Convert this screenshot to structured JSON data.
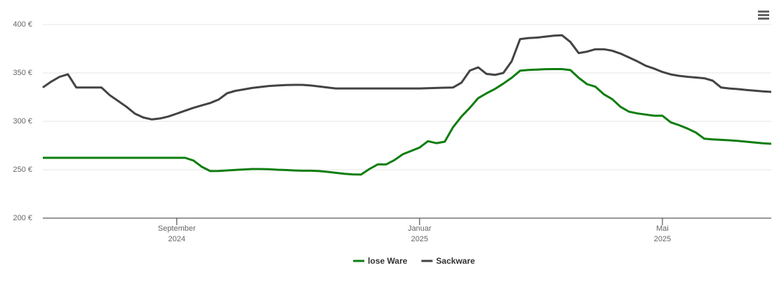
{
  "chart_data": {
    "type": "line",
    "categories": [
      null,
      null,
      null,
      null,
      null,
      null,
      null,
      null,
      null,
      null,
      null,
      null,
      null,
      null,
      null,
      null,
      "September 2024",
      null,
      null,
      null,
      null,
      null,
      null,
      null,
      null,
      null,
      null,
      null,
      null,
      null,
      null,
      null,
      null,
      null,
      null,
      null,
      null,
      null,
      null,
      null,
      null,
      null,
      null,
      null,
      null,
      "Januar 2025",
      null,
      null,
      null,
      null,
      null,
      null,
      null,
      null,
      null,
      null,
      null,
      null,
      null,
      null,
      null,
      null,
      null,
      null,
      null,
      null,
      null,
      null,
      null,
      null,
      null,
      null,
      null,
      null,
      "Mai 2025",
      null,
      null,
      null,
      null,
      null,
      null,
      null,
      null,
      null,
      null,
      null,
      null,
      null
    ],
    "series": [
      {
        "name": "lose Ware",
        "color": "#0e7d0e",
        "values": [
          262.3,
          262.3,
          262.3,
          262.3,
          262.3,
          262.3,
          262.3,
          262.3,
          262.3,
          262.3,
          262.3,
          262.3,
          262.3,
          262.3,
          262.3,
          262.3,
          262.3,
          262.3,
          259.5,
          253,
          248.6,
          248.8,
          249.3,
          249.8,
          250.3,
          250.7,
          250.7,
          250.5,
          250,
          249.7,
          249.3,
          249,
          249,
          248.6,
          247.8,
          246.8,
          245.8,
          245.2,
          245,
          250.7,
          255.5,
          255.5,
          260,
          266,
          269.5,
          273,
          279.5,
          277.5,
          279,
          294,
          305,
          314,
          324,
          329,
          333.5,
          339,
          345,
          352.3,
          353.1,
          353.5,
          353.9,
          354,
          354,
          353,
          345,
          338.4,
          335.8,
          328,
          323,
          315,
          310,
          308.2,
          307,
          305.8,
          305.8,
          299,
          296,
          292.5,
          288.4,
          282,
          281.4,
          280.9,
          280.4,
          279.8,
          279,
          278.2,
          277.4,
          276.8
        ]
      },
      {
        "name": "Sackware",
        "color": "#434343",
        "values": [
          335,
          341,
          346,
          348.6,
          335,
          335,
          335,
          335,
          327,
          321,
          315,
          308,
          304,
          302,
          303,
          305,
          308,
          311,
          314,
          316.5,
          319,
          322.5,
          329,
          331.5,
          333,
          334.5,
          335.5,
          336.5,
          337,
          337.5,
          337.7,
          337.7,
          337,
          336,
          335,
          334,
          334,
          334,
          334,
          334,
          334,
          334,
          334,
          334,
          334,
          334,
          334.2,
          334.5,
          334.8,
          335,
          340,
          352.5,
          355.8,
          349,
          348,
          350,
          362,
          385,
          386,
          386.5,
          387.5,
          388.5,
          389,
          382,
          370.5,
          372,
          374.5,
          374.5,
          373,
          370,
          366,
          362,
          357.5,
          354.5,
          351,
          348.5,
          347,
          346,
          345.3,
          344.5,
          342,
          335,
          334,
          333.3,
          332.5,
          331.7,
          331,
          330.4
        ]
      }
    ],
    "ylim": [
      200,
      400
    ],
    "yticks": [
      {
        "value": 200,
        "label": "200 €"
      },
      {
        "value": 250,
        "label": "250 €"
      },
      {
        "value": 300,
        "label": "300 €"
      },
      {
        "value": 350,
        "label": "350 €"
      },
      {
        "value": 400,
        "label": "400 €"
      }
    ],
    "grid": true,
    "legend": "bottom"
  }
}
